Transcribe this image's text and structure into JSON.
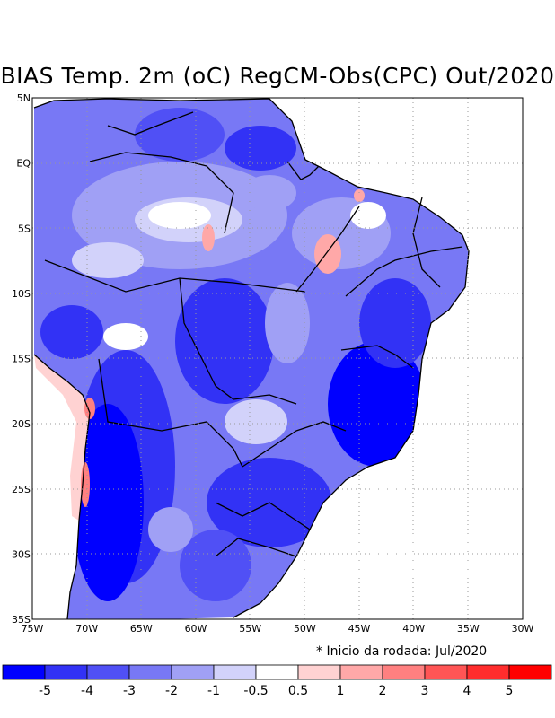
{
  "title": "BIAS Temp. 2m (oC) RegCM-Obs(CPC) Out/2020",
  "footnote": "* Inicio da rodada: Jul/2020",
  "map": {
    "lon_range": [
      -75,
      -30
    ],
    "lat_range": [
      -35,
      5
    ],
    "lon_ticks": [
      "75W",
      "70W",
      "65W",
      "60W",
      "55W",
      "50W",
      "45W",
      "40W",
      "35W",
      "30W"
    ],
    "lat_ticks": [
      "5N",
      "EQ",
      "5S",
      "10S",
      "15S",
      "20S",
      "25S",
      "30S",
      "35S"
    ],
    "gridlines": "dotted"
  },
  "colorbar": {
    "colors": [
      "#0000ff",
      "#3232f5",
      "#5050f5",
      "#7878f5",
      "#a0a0f5",
      "#d2d2fa",
      "#ffffff",
      "#ffd2d2",
      "#ffa8a8",
      "#ff8080",
      "#ff5555",
      "#ff2d2d",
      "#ff0000"
    ],
    "labels": [
      "-5",
      "-4",
      "-3",
      "-2",
      "-1",
      "-0.5",
      "0.5",
      "1",
      "2",
      "3",
      "4",
      "5"
    ]
  }
}
